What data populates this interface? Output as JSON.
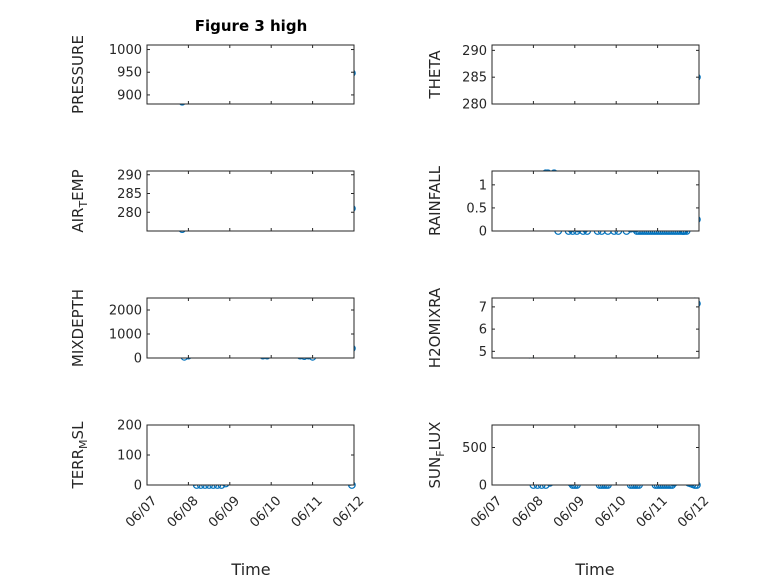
{
  "figure": {
    "title": "Figure 3 high",
    "xlabel": "Time",
    "x_ticks": [
      "06/07",
      "06/08",
      "06/09",
      "06/10",
      "06/11",
      "06/12"
    ]
  },
  "colors": {
    "marker": "#0072bd",
    "axes": "#262626",
    "grid": "#bfbfbf"
  },
  "chart_data": [
    {
      "type": "scatter",
      "ylabel": "PRESSURE",
      "title": "Figure 3 high",
      "xlim": [
        "06/07",
        "06/12"
      ],
      "ylim": [
        880,
        1010
      ],
      "yticks": [
        900,
        950,
        1000
      ],
      "x": [
        0.85,
        0.9,
        0.95,
        1.0,
        1.1,
        1.2,
        1.3,
        1.4,
        1.5,
        1.6,
        1.7,
        1.8,
        1.9,
        2.0,
        2.1,
        2.2,
        2.3,
        2.4,
        2.5,
        2.6,
        2.7,
        2.8,
        2.9,
        3.0,
        3.1,
        3.2,
        3.3,
        3.4,
        3.5,
        3.6,
        3.7,
        3.8,
        3.9,
        4.0,
        4.1,
        4.2,
        4.3,
        4.4,
        4.5,
        4.6,
        4.7,
        4.8,
        4.9,
        4.95
      ],
      "y": [
        885,
        910,
        935,
        945,
        950,
        955,
        958,
        948,
        960,
        968,
        975,
        982,
        990,
        993,
        994,
        992,
        996,
        998,
        996,
        998,
        999,
        1000,
        1002,
        998,
        995,
        997,
        993,
        990,
        985,
        955,
        940,
        942,
        945,
        950,
        955,
        958,
        960,
        955,
        958,
        948,
        955,
        962,
        965,
        948
      ]
    },
    {
      "type": "scatter",
      "ylabel": "THETA",
      "xlim": [
        "06/07",
        "06/12"
      ],
      "ylim": [
        280,
        291
      ],
      "yticks": [
        280,
        285,
        290
      ],
      "x": [
        0.85,
        0.9,
        1.0,
        1.1,
        1.2,
        1.3,
        1.4,
        1.5,
        1.6,
        1.7,
        1.8,
        1.9,
        2.0,
        2.1,
        2.2,
        2.3,
        2.4,
        2.5,
        2.6,
        2.7,
        2.8,
        2.9,
        3.0,
        3.1,
        3.2,
        3.3,
        3.4,
        3.5,
        3.6,
        3.7,
        3.8,
        3.9,
        4.0,
        4.1,
        4.2,
        4.3,
        4.4,
        4.5,
        4.6,
        4.7,
        4.8,
        4.9,
        4.95
      ],
      "y": [
        285,
        284.2,
        283.5,
        283.2,
        283,
        282.8,
        283,
        283.5,
        284,
        283.5,
        282,
        281,
        282.5,
        284,
        286,
        287,
        287.2,
        286.5,
        285,
        284,
        283,
        282,
        283,
        285,
        287.5,
        289.5,
        290.3,
        290.2,
        290,
        289.8,
        289.5,
        289.2,
        288.5,
        288.0,
        288.2,
        289.5,
        290.0,
        289.8,
        289,
        287.5,
        286.2,
        285.3,
        285
      ]
    },
    {
      "type": "scatter",
      "ylabel": "AIR_TEMP",
      "xlim": [
        "06/07",
        "06/12"
      ],
      "ylim": [
        275,
        291
      ],
      "yticks": [
        280,
        285,
        290
      ],
      "x": [
        0.85,
        0.9,
        0.95,
        1.0,
        1.1,
        1.2,
        1.3,
        1.4,
        1.5,
        1.6,
        1.7,
        1.8,
        1.9,
        2.0,
        2.1,
        2.2,
        2.3,
        2.4,
        2.5,
        2.6,
        2.7,
        2.8,
        2.9,
        3.0,
        3.1,
        3.2,
        3.3,
        3.4,
        3.5,
        3.6,
        3.7,
        3.8,
        3.9,
        4.0,
        4.1,
        4.2,
        4.3,
        4.4,
        4.5,
        4.6,
        4.7,
        4.8,
        4.9,
        4.95
      ],
      "y": [
        275.5,
        277,
        278.5,
        279.2,
        279.5,
        279.3,
        278.8,
        279.5,
        280.5,
        281.5,
        282.5,
        283.5,
        284,
        283,
        282,
        282.5,
        283.5,
        285,
        286,
        287,
        287.3,
        286.8,
        285.5,
        284.5,
        283.5,
        283,
        285,
        287,
        289,
        290,
        288.5,
        286.5,
        285.5,
        285,
        285.2,
        284.5,
        284.5,
        287,
        286,
        284,
        283,
        282.5,
        282,
        281
      ]
    },
    {
      "type": "scatter",
      "ylabel": "RAINFALL",
      "xlim": [
        "06/07",
        "06/12"
      ],
      "ylim": [
        0,
        1.3
      ],
      "yticks": [
        0,
        0.5,
        1
      ],
      "x": [
        1.3,
        1.35,
        1.4,
        1.5,
        1.55,
        1.6,
        1.65,
        1.7,
        1.75,
        1.8,
        1.85,
        1.9,
        1.95,
        2.0,
        2.05,
        2.1,
        2.15,
        2.2,
        2.25,
        2.3,
        2.35,
        2.4,
        2.45,
        2.5,
        2.55,
        2.6,
        2.65,
        2.7,
        2.75,
        2.8,
        2.85,
        2.9,
        2.95,
        3.0,
        3.05,
        3.1,
        3.15,
        3.2,
        3.25,
        3.3,
        3.35,
        3.4,
        3.45,
        3.5,
        3.55,
        3.6,
        3.65,
        3.7,
        3.75,
        3.8,
        3.85,
        3.9,
        3.95,
        4.0,
        4.05,
        4.1,
        4.15,
        4.2,
        4.25,
        4.3,
        4.35,
        4.4,
        4.45,
        4.5,
        4.55,
        4.6,
        4.62,
        4.65,
        4.7,
        4.75,
        4.8,
        4.85,
        4.9,
        4.95
      ],
      "y": [
        1.25,
        1.25,
        1.2,
        1.25,
        0.1,
        0.0,
        0.3,
        0.5,
        0.35,
        0.1,
        0.0,
        0.05,
        0.0,
        0.1,
        0.0,
        0.05,
        0.1,
        0.0,
        0.05,
        0.0,
        0.7,
        0.1,
        1.2,
        0.4,
        0.0,
        0.3,
        0.0,
        0.1,
        0.2,
        0.0,
        0.1,
        0.3,
        0.0,
        0.1,
        0.0,
        0.2,
        0.3,
        0.3,
        0.0,
        0.35,
        0.05,
        0.15,
        0.05,
        0.0,
        0.0,
        0.0,
        0.0,
        0.0,
        0.0,
        0.0,
        0.0,
        0.0,
        0.0,
        0.0,
        0.0,
        0.0,
        0.0,
        0.0,
        0.0,
        0.0,
        0.0,
        0.0,
        0.0,
        0.0,
        0.0,
        0.0,
        0.0,
        0.0,
        0.0,
        0.8,
        0.7,
        0.3,
        0.3,
        0.25
      ]
    },
    {
      "type": "scatter",
      "ylabel": "MIXDEPTH",
      "xlim": [
        "06/07",
        "06/12"
      ],
      "ylim": [
        0,
        2500
      ],
      "yticks": [
        0,
        1000,
        2000
      ],
      "x": [
        0.9,
        1.0,
        1.1,
        1.2,
        1.3,
        1.4,
        1.5,
        1.6,
        1.7,
        1.8,
        1.9,
        2.0,
        2.05,
        2.1,
        2.2,
        2.3,
        2.4,
        2.5,
        2.6,
        2.7,
        2.8,
        2.9,
        3.0,
        3.1,
        3.2,
        3.3,
        3.4,
        3.5,
        3.6,
        3.7,
        3.8,
        3.9,
        4.0,
        4.1,
        4.2,
        4.3,
        4.4,
        4.5,
        4.6,
        4.7,
        4.8,
        4.9,
        4.95
      ],
      "y": [
        50,
        100,
        250,
        400,
        500,
        600,
        750,
        800,
        900,
        1000,
        1300,
        800,
        400,
        500,
        700,
        1200,
        1800,
        1900,
        1200,
        400,
        100,
        100,
        200,
        500,
        1000,
        1600,
        2000,
        2300,
        1200,
        100,
        80,
        100,
        50,
        200,
        500,
        1200,
        2300,
        1500,
        400,
        450,
        500,
        550,
        400
      ]
    },
    {
      "type": "scatter",
      "ylabel": "H2OMIXRA",
      "xlim": [
        "06/07",
        "06/12"
      ],
      "ylim": [
        4.7,
        7.4
      ],
      "yticks": [
        5,
        6,
        7
      ],
      "x": [
        0.9,
        1.0,
        1.1,
        1.2,
        1.3,
        1.4,
        1.5,
        1.6,
        1.7,
        1.8,
        1.9,
        2.0,
        2.1,
        2.2,
        2.3,
        2.4,
        2.5,
        2.6,
        2.7,
        2.8,
        2.9,
        3.0,
        3.1,
        3.2,
        3.3,
        3.4,
        3.5,
        3.6,
        3.7,
        3.8,
        3.9,
        4.0,
        4.1,
        4.2,
        4.3,
        4.4,
        4.5,
        4.6,
        4.7,
        4.8,
        4.9,
        4.95
      ],
      "y": [
        4.85,
        4.85,
        4.9,
        5.1,
        5.2,
        5.4,
        5.6,
        5.8,
        5.7,
        5.6,
        5.4,
        5.3,
        5.5,
        5.9,
        6.1,
        6.0,
        5.6,
        4.9,
        5.2,
        5.7,
        6.1,
        6.3,
        6.0,
        5.5,
        5.2,
        5.4,
        5.7,
        5.9,
        5.8,
        5.5,
        5.3,
        5.3,
        5.2,
        5.0,
        5.2,
        5.6,
        6.0,
        6.4,
        6.9,
        7.2,
        7.25,
        7.15
      ]
    },
    {
      "type": "scatter",
      "ylabel": "TERR_MSL",
      "xlim": [
        "06/07",
        "06/12"
      ],
      "ylim": [
        0,
        200
      ],
      "yticks": [
        0,
        100,
        200
      ],
      "x": [
        0.85,
        0.9,
        0.95,
        1.0,
        1.05,
        1.1,
        1.15,
        1.2,
        1.3,
        1.4,
        1.5,
        1.6,
        1.7,
        1.8,
        1.9,
        2.0,
        2.1,
        2.2,
        2.3,
        2.4,
        2.5,
        2.6,
        2.7,
        2.8,
        2.9,
        3.0,
        3.1,
        3.2,
        3.3,
        3.4,
        3.5,
        3.6,
        3.7,
        3.8,
        3.9,
        4.0,
        4.1,
        4.2,
        4.3,
        4.4,
        4.5,
        4.6,
        4.7,
        4.8,
        4.9,
        4.95
      ],
      "y": [
        110,
        70,
        50,
        115,
        110,
        30,
        10,
        0,
        0,
        0,
        0,
        0,
        0,
        0,
        5,
        45,
        60,
        55,
        30,
        80,
        100,
        110,
        100,
        110,
        120,
        140,
        150,
        160,
        170,
        175,
        180,
        185,
        180,
        175,
        185,
        180,
        185,
        175,
        160,
        140,
        100,
        80,
        50,
        30,
        10,
        0
      ]
    },
    {
      "type": "scatter",
      "ylabel": "SUN_FLUX",
      "xlim": [
        "06/07",
        "06/12"
      ],
      "ylim": [
        0,
        800
      ],
      "yticks": [
        0,
        500
      ],
      "x": [
        1.0,
        1.1,
        1.2,
        1.3,
        1.4,
        1.5,
        1.55,
        1.6,
        1.65,
        1.7,
        1.75,
        1.8,
        1.85,
        1.9,
        1.95,
        2.0,
        2.05,
        2.1,
        2.15,
        2.2,
        2.25,
        2.3,
        2.35,
        2.4,
        2.45,
        2.5,
        2.55,
        2.6,
        2.65,
        2.7,
        2.75,
        2.8,
        2.85,
        2.9,
        2.95,
        3.0,
        3.05,
        3.1,
        3.15,
        3.2,
        3.25,
        3.3,
        3.35,
        3.4,
        3.45,
        3.5,
        3.55,
        3.6,
        3.65,
        3.7,
        3.75,
        3.8,
        3.85,
        3.9,
        3.95,
        4.0,
        4.05,
        4.1,
        4.15,
        4.2,
        4.25,
        4.3,
        4.35,
        4.4,
        4.45,
        4.5,
        4.55,
        4.6,
        4.65,
        4.7,
        4.75,
        4.8,
        4.85,
        4.9,
        4.95
      ],
      "y": [
        0,
        0,
        0,
        0,
        30,
        200,
        350,
        480,
        600,
        700,
        500,
        300,
        150,
        30,
        0,
        0,
        0,
        60,
        300,
        500,
        350,
        250,
        400,
        500,
        450,
        200,
        50,
        0,
        0,
        0,
        0,
        0,
        50,
        400,
        600,
        720,
        740,
        600,
        450,
        300,
        200,
        100,
        0,
        0,
        0,
        0,
        0,
        50,
        300,
        450,
        500,
        400,
        150,
        50,
        0,
        0,
        0,
        0,
        0,
        0,
        0,
        0,
        0,
        30,
        200,
        550,
        500,
        400,
        100,
        50,
        30,
        20,
        10,
        0,
        0
      ]
    }
  ]
}
